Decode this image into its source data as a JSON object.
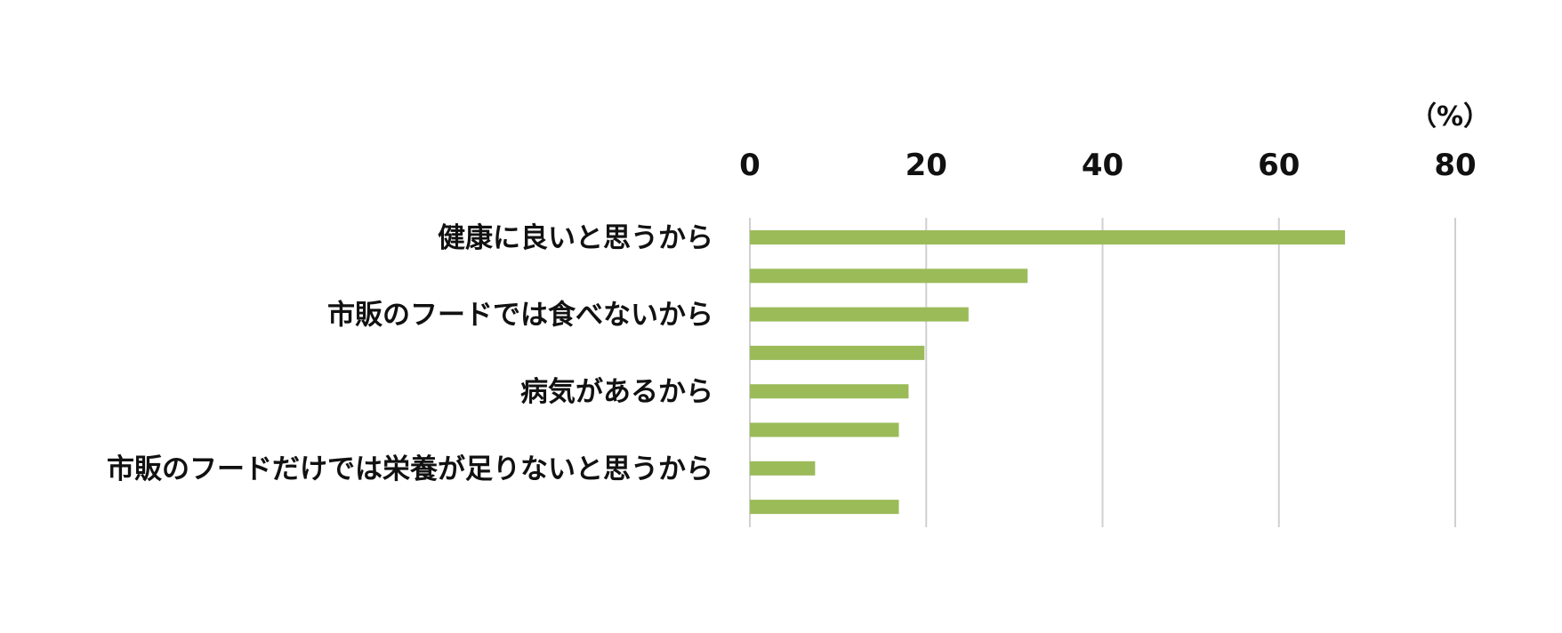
{
  "chart_data": {
    "type": "bar",
    "orientation": "horizontal",
    "unit_label": "（%）",
    "categories": [
      "健康に良いと思うから",
      "",
      "市販のフードでは食べないから",
      "",
      "病気があるから",
      "",
      "市販のフードだけでは栄養が足りないと思うから",
      ""
    ],
    "values": [
      67.5,
      31.5,
      24.8,
      19.8,
      18.0,
      16.9,
      7.4,
      16.9
    ],
    "xlim": [
      0,
      80
    ],
    "xticks": [
      "0",
      "20",
      "40",
      "60",
      "80"
    ],
    "xtick_values": [
      0,
      20,
      40,
      60,
      80
    ],
    "axis_position": "top",
    "grid": true,
    "legend": "none",
    "colors": {
      "bar": "#9bbb59",
      "grid": "#d0d0d0",
      "text": "#111111"
    }
  }
}
